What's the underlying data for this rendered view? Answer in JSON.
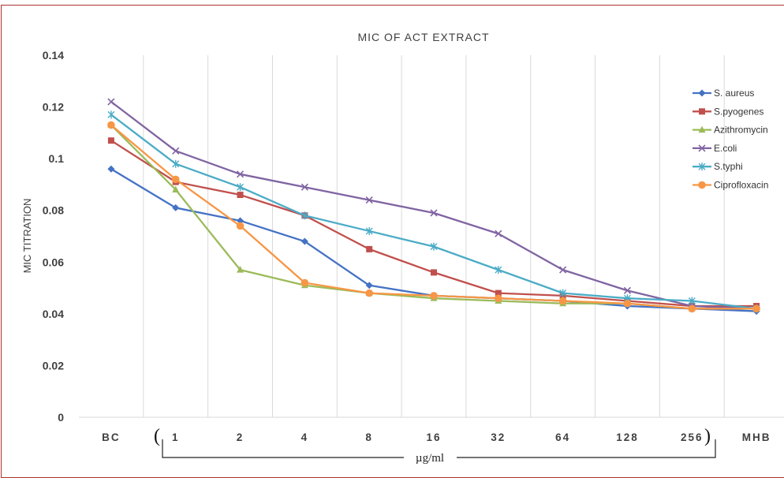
{
  "chart_data": {
    "type": "line",
    "title": "MIC OF ACT EXTRACT",
    "ylabel": "MIC TITRATION",
    "xlabel": "µg/ml",
    "categories": [
      "BC",
      "1",
      "2",
      "4",
      "8",
      "16",
      "32",
      "64",
      "128",
      "256",
      "MHB"
    ],
    "ylim": [
      0,
      0.14
    ],
    "yticks": [
      "0",
      "0.02",
      "0.04",
      "0.06",
      "0.08",
      "0.1",
      "0.12",
      "0.14"
    ],
    "grid": "vertical",
    "legend_position": "right",
    "series": [
      {
        "name": "S. aureus",
        "color": "#4472c4",
        "marker": "diamond",
        "values": [
          0.096,
          0.081,
          0.076,
          0.068,
          0.051,
          0.047,
          0.046,
          0.045,
          0.043,
          0.042,
          0.041
        ]
      },
      {
        "name": "S.pyogenes",
        "color": "#c0504d",
        "marker": "square",
        "values": [
          0.107,
          0.091,
          0.086,
          0.078,
          0.065,
          0.056,
          0.048,
          0.047,
          0.045,
          0.043,
          0.043
        ]
      },
      {
        "name": "Azithromycin",
        "color": "#9bbb59",
        "marker": "triangle",
        "values": [
          0.113,
          0.088,
          0.057,
          0.051,
          0.048,
          0.046,
          0.045,
          0.044,
          0.044,
          0.042,
          0.042
        ]
      },
      {
        "name": "E.coli",
        "color": "#8064a2",
        "marker": "x",
        "values": [
          0.122,
          0.103,
          0.094,
          0.089,
          0.084,
          0.079,
          0.071,
          0.057,
          0.049,
          0.043,
          0.042
        ]
      },
      {
        "name": "S.typhi",
        "color": "#4bacc6",
        "marker": "star",
        "values": [
          0.117,
          0.098,
          0.089,
          0.078,
          0.072,
          0.066,
          0.057,
          0.048,
          0.046,
          0.045,
          0.042
        ]
      },
      {
        "name": "Ciprofloxacin",
        "color": "#f79646",
        "marker": "circle",
        "values": [
          0.113,
          0.092,
          0.074,
          0.052,
          0.048,
          0.047,
          0.046,
          0.045,
          0.044,
          0.042,
          0.042
        ]
      }
    ]
  }
}
